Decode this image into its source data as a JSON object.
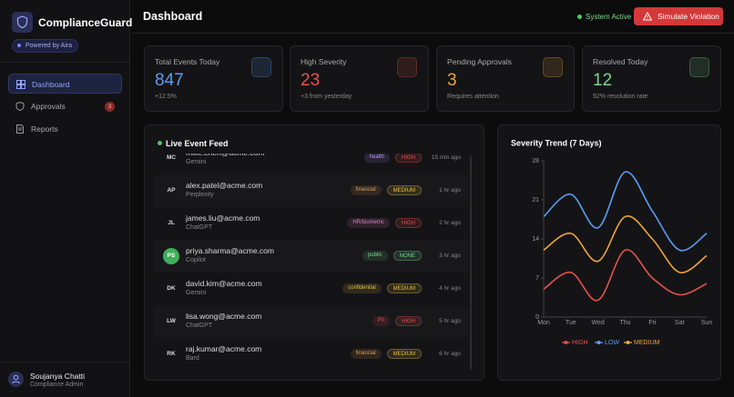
{
  "sidebar": {
    "brand": "ComplianceGuard",
    "powered_by": "Powered by Aira",
    "nav": [
      {
        "label": "Dashboard"
      },
      {
        "label": "Approvals",
        "badge": 3
      },
      {
        "label": "Reports"
      }
    ],
    "user": {
      "initial_name": "Soujanya Chatti",
      "role": "Compliance Admin"
    }
  },
  "header": {
    "title": "Dashboard",
    "status": "System Active",
    "button": "Simulate Violation"
  },
  "stats": [
    {
      "label": "Total Events Today",
      "value": 847,
      "note": "+12.5%",
      "color": "#5b9cf5"
    },
    {
      "label": "High Severity",
      "value": 23,
      "note": "+3 from yesterday",
      "color": "#e5534b"
    },
    {
      "label": "Pending Approvals",
      "value": 3,
      "note": "Requires attention",
      "color": "#f0a53a"
    },
    {
      "label": "Resolved Today",
      "value": 12,
      "note": "92% resolution rate",
      "color": "#7bd88f"
    }
  ],
  "feed": {
    "title": "Live Event Feed",
    "rows": [
      {
        "initials": "MC",
        "email": "mike.chen@acme.com",
        "tool": "Gemini",
        "category": "health",
        "category_color": "#b794f6",
        "severity": "HIGH",
        "severity_color": "#e5534b",
        "time": "15 min ago"
      },
      {
        "initials": "AP",
        "email": "alex.patel@acme.com",
        "tool": "Perplexity",
        "category": "financial",
        "category_color": "#e0a050",
        "severity": "MEDIUM",
        "severity_color": "#e8c040",
        "time": "1 hr ago"
      },
      {
        "initials": "JL",
        "email": "james.liu@acme.com",
        "tool": "ChatGPT",
        "category": "HR/biometric",
        "category_color": "#e080c0",
        "severity": "HIGH",
        "severity_color": "#e5534b",
        "time": "2 hr ago"
      },
      {
        "initials": "PS",
        "email": "priya.sharma@acme.com",
        "tool": "Copilot",
        "category": "public",
        "category_color": "#7bd88f",
        "severity": "NONE",
        "severity_color": "#7bd88f",
        "time": "3 hr ago"
      },
      {
        "initials": "DK",
        "email": "david.kim@acme.com",
        "tool": "Gemini",
        "category": "confidential",
        "category_color": "#e8c040",
        "severity": "MEDIUM",
        "severity_color": "#e8c040",
        "time": "4 hr ago"
      },
      {
        "initials": "LW",
        "email": "lisa.wong@acme.com",
        "tool": "ChatGPT",
        "category": "PII",
        "category_color": "#e5534b",
        "severity": "HIGH",
        "severity_color": "#e5534b",
        "time": "5 hr ago"
      },
      {
        "initials": "RK",
        "email": "raj.kumar@acme.com",
        "tool": "Bard",
        "category": "financial",
        "category_color": "#e0a050",
        "severity": "MEDIUM",
        "severity_color": "#e8c040",
        "time": "6 hr ago"
      }
    ]
  },
  "chart_data": {
    "type": "line",
    "title": "Severity Trend (7 Days)",
    "categories": [
      "Mon",
      "Tue",
      "Wed",
      "Thu",
      "Fri",
      "Sat",
      "Sun"
    ],
    "series": [
      {
        "name": "HIGH",
        "color": "#e5534b",
        "values": [
          5,
          8,
          3,
          12,
          7,
          4,
          6
        ]
      },
      {
        "name": "LOW",
        "color": "#5b9cf5",
        "values": [
          18,
          22,
          16,
          26,
          19,
          12,
          15
        ]
      },
      {
        "name": "MEDIUM",
        "color": "#f0a53a",
        "values": [
          12,
          15,
          10,
          18,
          14,
          8,
          11
        ]
      }
    ],
    "ylim": [
      0,
      28
    ],
    "yticks": [
      0,
      7,
      14,
      21,
      28
    ],
    "grid": false
  }
}
